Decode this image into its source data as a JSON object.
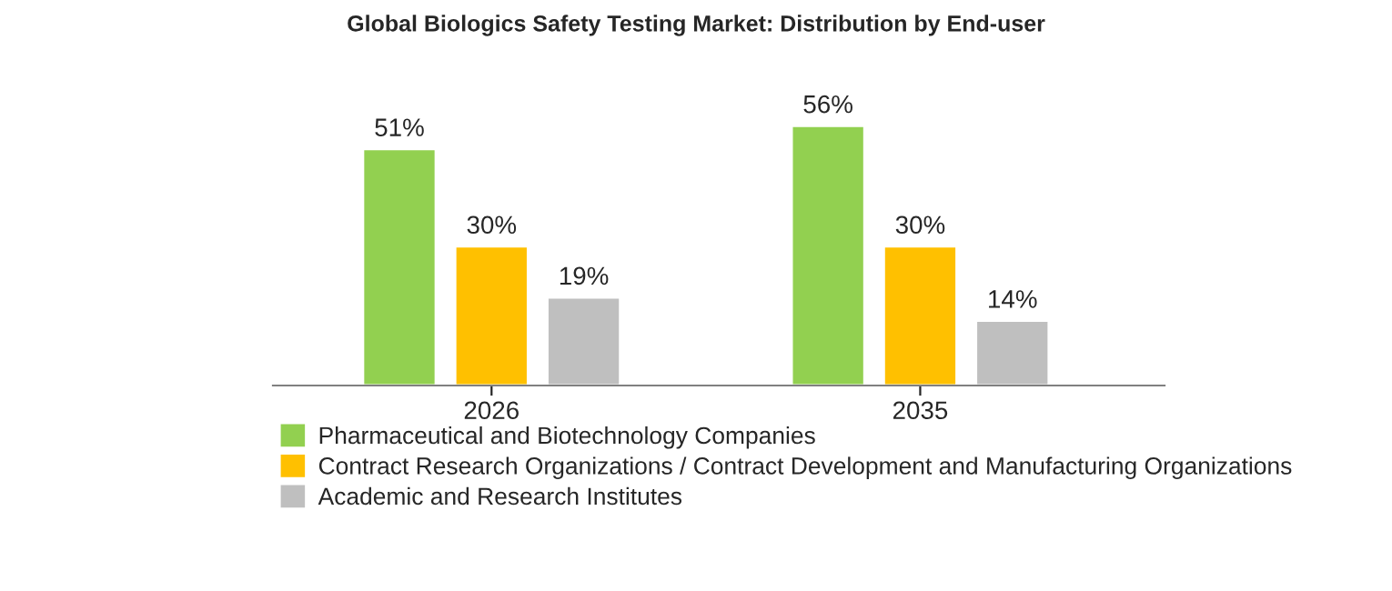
{
  "chart_data": {
    "type": "bar",
    "title": "Global Biologics Safety Testing Market: Distribution by End-user",
    "categories": [
      "2026",
      "2035"
    ],
    "series": [
      {
        "name": "Pharmaceutical and Biotechnology Companies",
        "color": "#92d050",
        "values": [
          51,
          56
        ],
        "value_labels": [
          "51%",
          "56%"
        ]
      },
      {
        "name": "Contract Research Organizations / Contract Development and Manufacturing Organizations",
        "color": "#ffc000",
        "values": [
          30,
          30
        ],
        "value_labels": [
          "30%",
          "30%"
        ]
      },
      {
        "name": "Academic and Research Institutes",
        "color": "#bfbfbf",
        "values": [
          19,
          14
        ],
        "value_labels": [
          "19%",
          "14%"
        ]
      }
    ],
    "legend": "bottom",
    "grid": false,
    "tick_labels": "x"
  }
}
